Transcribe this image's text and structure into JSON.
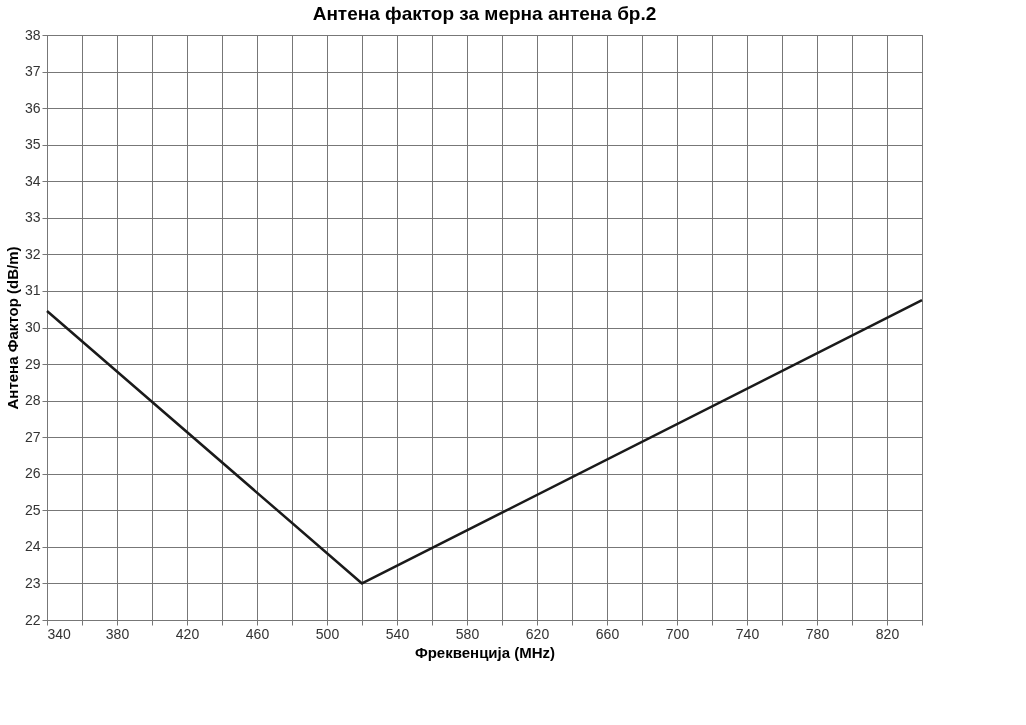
{
  "chart_data": {
    "type": "line",
    "title": "Антена фактор за мерна антена бр.2",
    "xlabel": "Фреквенција (MHz)",
    "ylabel": "Антена Фактор (dB/m)",
    "x": [
      340,
      520,
      840
    ],
    "series": [
      {
        "color": "#1a1a1a",
        "values": [
          30.45,
          23.0,
          30.75
        ]
      }
    ],
    "xlim": [
      340,
      840
    ],
    "xticks": [
      340,
      {
        "value": 360,
        "label": null
      },
      380,
      {
        "value": 400,
        "label": null
      },
      420,
      {
        "value": 440,
        "label": null
      },
      460,
      {
        "value": 480,
        "label": null
      },
      500,
      {
        "value": 520,
        "label": null
      },
      540,
      {
        "value": 560,
        "label": null
      },
      580,
      {
        "value": 600,
        "label": null
      },
      620,
      {
        "value": 640,
        "label": null
      },
      660,
      {
        "value": 680,
        "label": null
      },
      700,
      {
        "value": 720,
        "label": null
      },
      740,
      {
        "value": 760,
        "label": null
      },
      780,
      {
        "value": 800,
        "label": null
      },
      820,
      {
        "value": 840,
        "label": null
      }
    ],
    "ylim": [
      22,
      38
    ],
    "yticks": [
      22,
      23,
      24,
      25,
      26,
      27,
      28,
      29,
      30,
      31,
      32,
      33,
      34,
      35,
      36,
      37,
      38
    ],
    "grid": true,
    "legend": false,
    "marker": "none",
    "line_style": "solid"
  }
}
